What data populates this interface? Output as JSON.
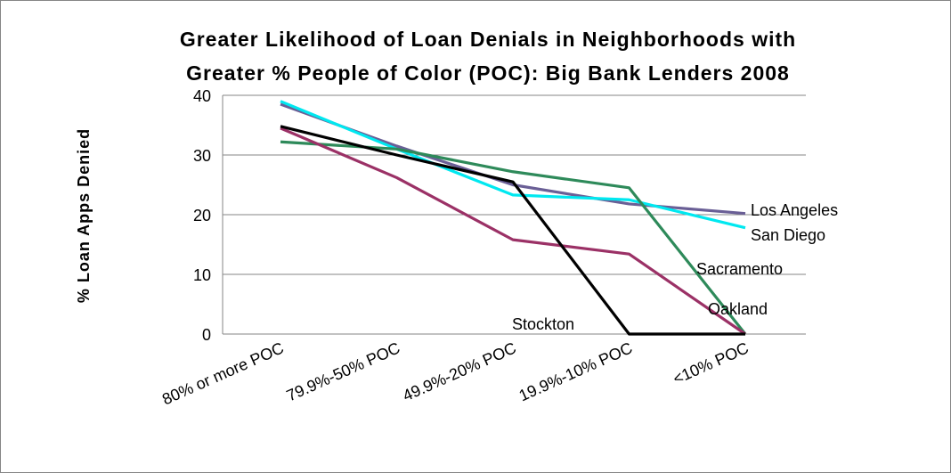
{
  "chart_data": {
    "type": "line",
    "title_line1": "Greater Likelihood of Loan Denials in Neighborhoods with",
    "title_line2": "Greater % People of Color (POC): Big Bank Lenders 2008",
    "xlabel": "",
    "ylabel": "% Loan Apps Denied",
    "categories": [
      "80% or more POC",
      "79.9%-50% POC",
      "49.9%-20% POC",
      "19.9%-10% POC",
      "<10% POC"
    ],
    "ylim": [
      0,
      40
    ],
    "yticks": [
      0,
      10,
      20,
      30,
      40
    ],
    "grid": "horizontal",
    "legend": "none",
    "series": [
      {
        "name": "Los Angeles",
        "values": [
          38.5,
          31.5,
          25,
          21.8,
          20.2
        ],
        "color": "#6a5f96"
      },
      {
        "name": "San Diego",
        "values": [
          39,
          31,
          23.3,
          22.5,
          17.8
        ],
        "color": "#00e8f0"
      },
      {
        "name": "Sacramento",
        "values": [
          32.2,
          31,
          27.2,
          24.5,
          0
        ],
        "color": "#2e8a5a"
      },
      {
        "name": "Oakland",
        "values": [
          34.5,
          26.2,
          15.8,
          13.4,
          0
        ],
        "color": "#9b3166"
      },
      {
        "name": "Stockton",
        "values": [
          34.8,
          30,
          25.5,
          0,
          0
        ],
        "color": "#000000"
      }
    ]
  }
}
